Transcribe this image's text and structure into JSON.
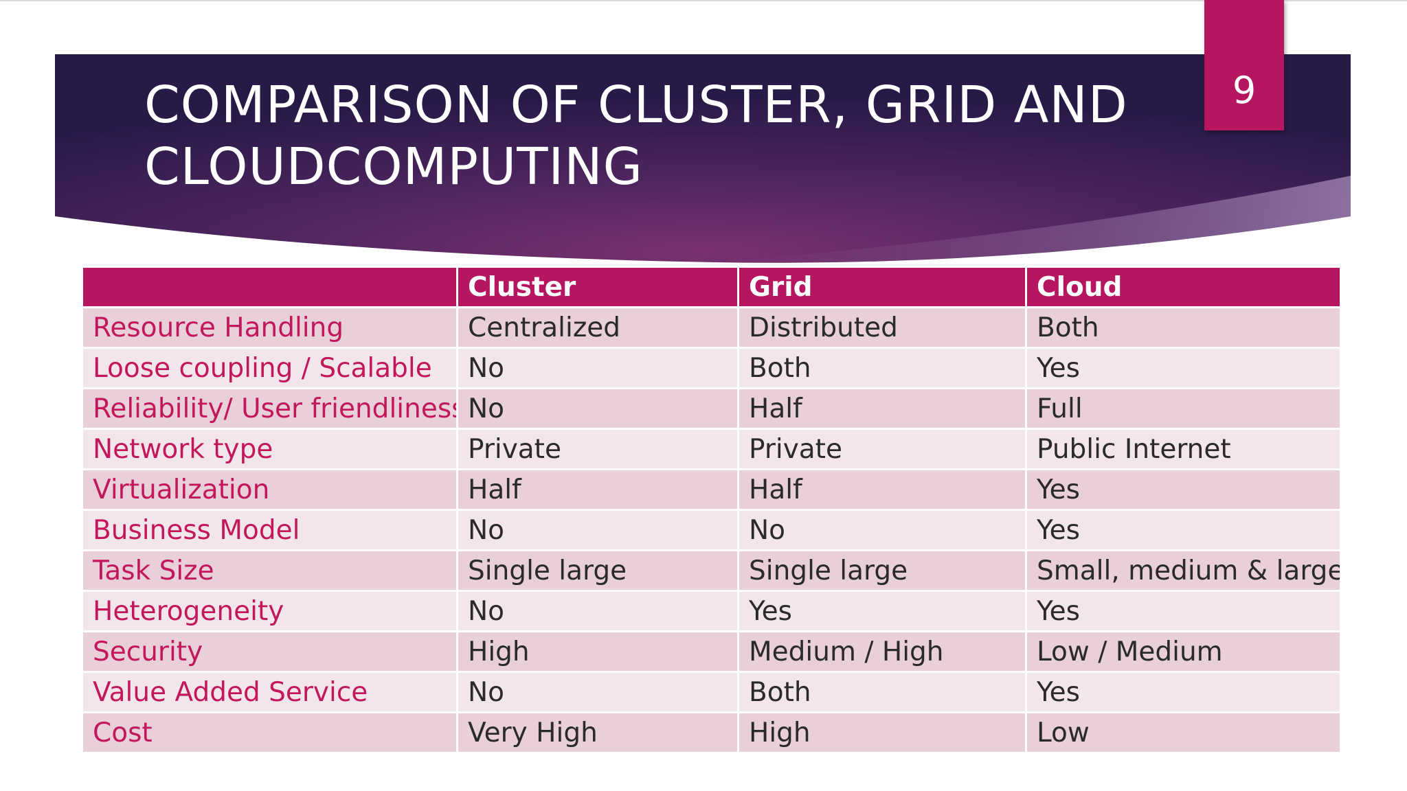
{
  "slide": {
    "title_lines": [
      "COMPARISON OF CLUSTER, GRID AND",
      "CLOUDCOMPUTING"
    ],
    "page_number": "9"
  },
  "colors": {
    "banner_dark": "#2c1d4d",
    "banner_mid": "#5a2a63",
    "accent": "#b5165f",
    "row_label_text": "#c2185b",
    "row_shade_odd": "#e8cfd8",
    "row_shade_even": "#f3e6ea"
  },
  "table": {
    "headers": [
      "",
      "Cluster",
      "Grid",
      "Cloud"
    ],
    "rows": [
      [
        "Resource Handling",
        "Centralized",
        "Distributed",
        "Both"
      ],
      [
        "Loose coupling / Scalable",
        "No",
        "Both",
        "Yes"
      ],
      [
        "Reliability/ User friendliness",
        "No",
        "Half",
        "Full"
      ],
      [
        "Network type",
        "Private",
        "Private",
        "Public Internet"
      ],
      [
        "Virtualization",
        "Half",
        "Half",
        "Yes"
      ],
      [
        "Business Model",
        "No",
        "No",
        "Yes"
      ],
      [
        "Task Size",
        "Single large",
        "Single large",
        "Small, medium & large"
      ],
      [
        "Heterogeneity",
        "No",
        "Yes",
        "Yes"
      ],
      [
        "Security",
        "High",
        "Medium / High",
        "Low / Medium"
      ],
      [
        "Value Added Service",
        "No",
        "Both",
        "Yes"
      ],
      [
        "Cost",
        "Very High",
        "High",
        "Low"
      ]
    ]
  }
}
